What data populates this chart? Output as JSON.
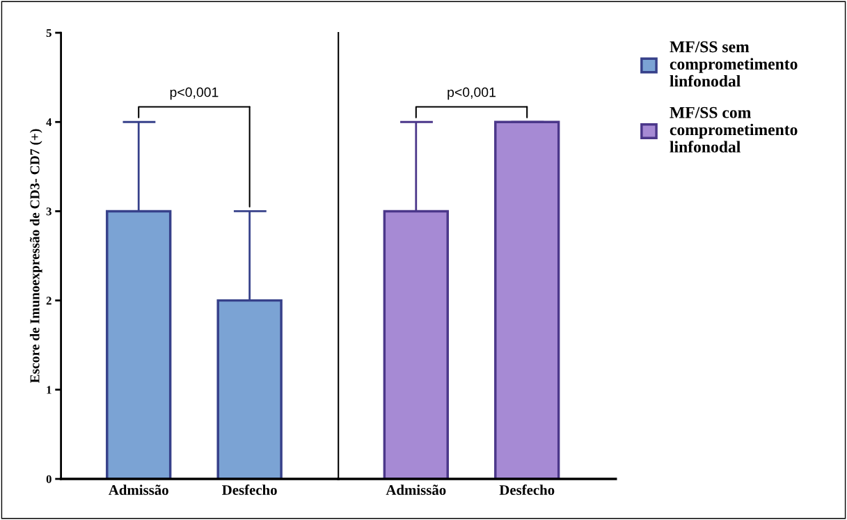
{
  "chart_data": [
    {
      "type": "bar",
      "ylabel": "Escore de Imunoexpressão de CD3- CD7 (+)",
      "categories": [
        "Admissão",
        "Desfecho"
      ],
      "ylim": [
        0,
        5
      ],
      "yticks": [
        0,
        1,
        2,
        3,
        4,
        5
      ],
      "grid": false,
      "legend": "right",
      "series": [
        {
          "name": "MF/SS sem comprometimento linfonodal",
          "color": "#7ba3d4",
          "values": [
            3,
            2
          ],
          "errors": [
            [
              3,
              4
            ],
            [
              2,
              3
            ]
          ]
        }
      ],
      "annotations": [
        "p<0,001"
      ]
    },
    {
      "type": "bar",
      "categories": [
        "Admissão",
        "Desfecho"
      ],
      "ylim": [
        0,
        5
      ],
      "yticks": [
        0,
        1,
        2,
        3,
        4,
        5
      ],
      "tick_labels": "x",
      "grid": false,
      "legend": "right",
      "series": [
        {
          "name": "MF/SS com comprometimento linfonodal",
          "color": "#a68ad4",
          "values": [
            3,
            4
          ],
          "errors": [
            [
              3,
              4
            ],
            [
              4,
              4
            ]
          ]
        }
      ],
      "annotations": [
        "p<0,001"
      ]
    }
  ]
}
